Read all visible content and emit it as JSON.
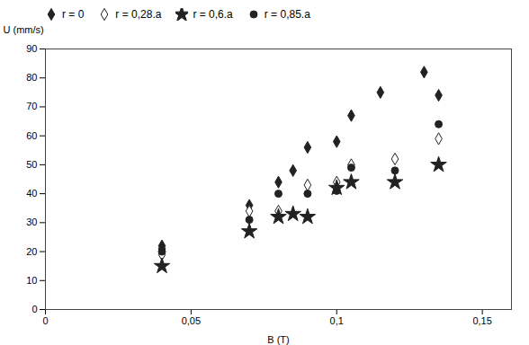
{
  "chart_data": {
    "type": "scatter",
    "xlabel": "B (T)",
    "ylabel": "U (mm/s)",
    "series": [
      {
        "name": "r = 0",
        "marker": "diamond",
        "color": "#222222",
        "x": [
          0.04,
          0.04,
          0.07,
          0.08,
          0.085,
          0.09,
          0.1,
          0.105,
          0.115,
          0.13,
          0.135
        ],
        "values": [
          22,
          21,
          36,
          44,
          48,
          56,
          58,
          67,
          75,
          82,
          74
        ]
      },
      {
        "name": "r = 0,28.a",
        "marker": "diamond_open",
        "color": "#222222",
        "x": [
          0.04,
          0.07,
          0.08,
          0.09,
          0.1,
          0.105,
          0.12,
          0.135
        ],
        "values": [
          19,
          34,
          34,
          43,
          44,
          50,
          52,
          59
        ]
      },
      {
        "name": "r = 0,6.a",
        "marker": "star",
        "color": "#222222",
        "x": [
          0.04,
          0.07,
          0.08,
          0.085,
          0.09,
          0.1,
          0.105,
          0.12,
          0.135
        ],
        "values": [
          15,
          27,
          32,
          33,
          32,
          42,
          44,
          44,
          50
        ]
      },
      {
        "name": "r = 0,85.a",
        "marker": "circle",
        "color": "#222222",
        "x": [
          0.04,
          0.07,
          0.08,
          0.09,
          0.1,
          0.105,
          0.12,
          0.135
        ],
        "values": [
          20,
          31,
          40,
          40,
          41,
          49,
          48,
          64
        ]
      }
    ],
    "xlim": [
      0,
      0.16
    ],
    "xticks": [
      0,
      {
        "value": 0.05,
        "label": "0,05"
      },
      {
        "value": 0.1,
        "label": "0,1"
      },
      {
        "value": 0.15,
        "label": "0,15"
      }
    ],
    "ylim": [
      0,
      90
    ],
    "yticks": [
      0,
      10,
      20,
      30,
      40,
      50,
      60,
      70,
      80,
      90
    ],
    "legend": "upper left",
    "grid": false
  }
}
